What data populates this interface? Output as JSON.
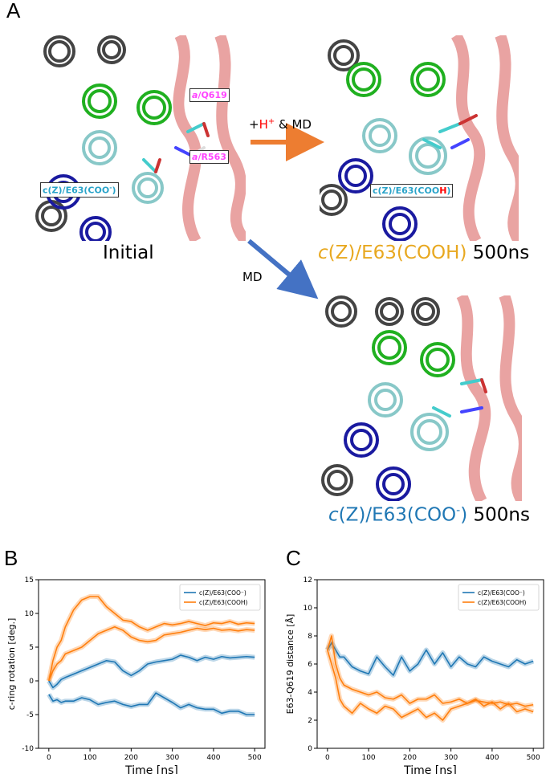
{
  "panel_labels": {
    "a": "A",
    "b": "B",
    "c": "C"
  },
  "snapshots": {
    "initial": {
      "caption": "Initial",
      "tag_q619_prefix": "a",
      "tag_q619_rest": "/Q619",
      "tag_r563_prefix": "a",
      "tag_r563_rest": "/R563",
      "tag_e63": "c(Z)/E63(COO",
      "tag_e63_sup": "-",
      "tag_e63_close": ")"
    },
    "cooh": {
      "caption_prefix": "c",
      "caption_mid": "(Z)/E63(COOH)",
      "caption_time": "500ns",
      "tag_prefix": "c(Z)/E63(COO",
      "tag_h": "H",
      "tag_close": ")"
    },
    "coo": {
      "caption_prefix": "c",
      "caption_mid": "(Z)/E63(COO",
      "caption_sup": "-",
      "caption_close": ")",
      "caption_time": "500ns"
    }
  },
  "arrows": {
    "protonate_prefix": "+",
    "protonate_h": "H",
    "protonate_sup": "+",
    "protonate_suffix": " & MD",
    "md": "MD"
  },
  "colors": {
    "orange": "#ed7d31",
    "blue_arrow": "#4472c4",
    "coo_series": "#1f77b4",
    "cooh_series": "#ff7f0e",
    "tag_magenta": "#ff44ff",
    "tag_cyan": "#29a3c9",
    "h_red": "#ff0000",
    "helix_green": "#20b020",
    "helix_cyan": "#88c8c8",
    "helix_blue": "#1a1aa0",
    "helix_gray": "#555555",
    "ribbon_pink": "#e79a98"
  },
  "chart_data": [
    {
      "type": "line",
      "panel": "B",
      "xlabel": "Time [ns]",
      "ylabel": "c-ring rotation [deg.]",
      "xlim": [
        -25,
        525
      ],
      "ylim": [
        -10,
        15
      ],
      "xticks": [
        0,
        100,
        200,
        300,
        400,
        500
      ],
      "yticks": [
        -10,
        -5,
        0,
        5,
        10,
        15
      ],
      "legend_loc": "upper right",
      "series": [
        {
          "name": "c(Z)/E63(COO⁻)",
          "color": "#1f77b4",
          "x": [
            0,
            10,
            20,
            30,
            40,
            60,
            80,
            100,
            120,
            140,
            160,
            180,
            200,
            220,
            240,
            260,
            280,
            300,
            320,
            340,
            360,
            380,
            400,
            420,
            440,
            460,
            480,
            500
          ],
          "y": [
            0,
            -1,
            -0.5,
            0.2,
            0.5,
            1,
            1.5,
            2,
            2.5,
            3,
            2.8,
            1.5,
            0.8,
            1.5,
            2.5,
            2.8,
            3,
            3.2,
            3.8,
            3.5,
            3,
            3.5,
            3.2,
            3.6,
            3.4,
            3.5,
            3.6,
            3.5
          ]
        },
        {
          "name": "c(Z)/E63(COO⁻)",
          "color": "#1f77b4",
          "x": [
            0,
            10,
            20,
            30,
            40,
            60,
            80,
            100,
            120,
            140,
            160,
            180,
            200,
            220,
            240,
            260,
            280,
            300,
            320,
            340,
            360,
            380,
            400,
            420,
            440,
            460,
            480,
            500
          ],
          "y": [
            -2,
            -3,
            -2.8,
            -3.2,
            -3,
            -3,
            -2.5,
            -2.8,
            -3.5,
            -3.2,
            -3,
            -3.5,
            -3.8,
            -3.5,
            -3.5,
            -1.8,
            -2.5,
            -3.2,
            -4,
            -3.5,
            -4,
            -4.2,
            -4.2,
            -4.8,
            -4.5,
            -4.5,
            -5,
            -5
          ]
        },
        {
          "name": "c(Z)/E63(COOH)",
          "color": "#ff7f0e",
          "x": [
            0,
            10,
            20,
            30,
            40,
            60,
            80,
            100,
            120,
            140,
            160,
            180,
            200,
            220,
            240,
            260,
            280,
            300,
            320,
            340,
            360,
            380,
            400,
            420,
            440,
            460,
            480,
            500
          ],
          "y": [
            0,
            3,
            5,
            6,
            8,
            10.5,
            12,
            12.5,
            12.5,
            11,
            10,
            9,
            8.8,
            8,
            7.5,
            8,
            8.5,
            8.3,
            8.5,
            8.8,
            8.5,
            8.2,
            8.6,
            8.5,
            8.8,
            8.4,
            8.6,
            8.5
          ]
        },
        {
          "name": "c(Z)/E63(COOH)",
          "color": "#ff7f0e",
          "x": [
            0,
            10,
            20,
            30,
            40,
            60,
            80,
            100,
            120,
            140,
            160,
            180,
            200,
            220,
            240,
            260,
            280,
            300,
            320,
            340,
            360,
            380,
            400,
            420,
            440,
            460,
            480,
            500
          ],
          "y": [
            0,
            1.5,
            2.5,
            3,
            4,
            4.5,
            5,
            6,
            7,
            7.5,
            8,
            7.5,
            6.5,
            6,
            5.8,
            6,
            6.8,
            7,
            7.2,
            7.5,
            7.8,
            7.6,
            7.8,
            7.5,
            7.6,
            7.4,
            7.6,
            7.5
          ]
        }
      ]
    },
    {
      "type": "line",
      "panel": "C",
      "xlabel": "Time [ns]",
      "ylabel": "E63-Q619 distance [Å]",
      "xlim": [
        -25,
        525
      ],
      "ylim": [
        0,
        12
      ],
      "xticks": [
        0,
        100,
        200,
        300,
        400,
        500
      ],
      "yticks": [
        0,
        2,
        4,
        6,
        8,
        10,
        12
      ],
      "legend_loc": "upper right",
      "series": [
        {
          "name": "c(Z)/E63(COO⁻)",
          "color": "#1f77b4",
          "x": [
            0,
            10,
            20,
            30,
            40,
            60,
            80,
            100,
            120,
            140,
            160,
            180,
            200,
            220,
            240,
            260,
            280,
            300,
            320,
            340,
            360,
            380,
            400,
            420,
            440,
            460,
            480,
            500
          ],
          "y": [
            7,
            7.5,
            7,
            6.5,
            6.5,
            5.8,
            5.5,
            5.3,
            6.5,
            5.8,
            5.2,
            6.5,
            5.5,
            6,
            7,
            6,
            6.8,
            5.8,
            6.5,
            6,
            5.8,
            6.5,
            6.2,
            6,
            5.8,
            6.3,
            6,
            6.2
          ]
        },
        {
          "name": "c(Z)/E63(COOH)",
          "color": "#ff7f0e",
          "x": [
            0,
            10,
            20,
            30,
            40,
            60,
            80,
            100,
            120,
            140,
            160,
            180,
            200,
            220,
            240,
            260,
            280,
            300,
            320,
            340,
            360,
            380,
            400,
            420,
            440,
            460,
            480,
            500
          ],
          "y": [
            7,
            8,
            6,
            5,
            4.5,
            4.2,
            4,
            3.8,
            4,
            3.6,
            3.5,
            3.8,
            3.2,
            3.5,
            3.5,
            3.8,
            3.2,
            3.3,
            3.5,
            3.2,
            3.4,
            3.3,
            3.2,
            3.3,
            3.1,
            3.2,
            3,
            3.1
          ]
        },
        {
          "name": "c(Z)/E63(COOH)",
          "color": "#ff7f0e",
          "x": [
            0,
            10,
            20,
            30,
            40,
            60,
            80,
            100,
            120,
            140,
            160,
            180,
            200,
            220,
            240,
            260,
            280,
            300,
            320,
            340,
            360,
            380,
            400,
            420,
            440,
            460,
            480,
            500
          ],
          "y": [
            7,
            6,
            5,
            3.5,
            3,
            2.5,
            3.2,
            2.8,
            2.5,
            3,
            2.8,
            2.2,
            2.5,
            2.8,
            2.2,
            2.5,
            2,
            2.8,
            3,
            3.2,
            3.5,
            3,
            3.3,
            2.8,
            3.2,
            2.6,
            2.8,
            2.6
          ]
        }
      ]
    }
  ]
}
